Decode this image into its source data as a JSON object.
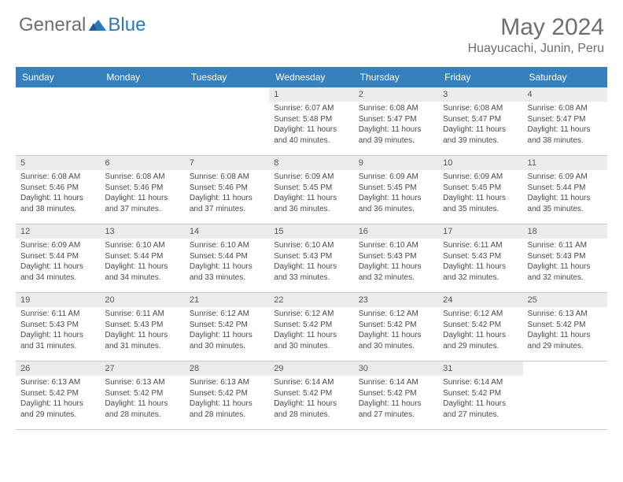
{
  "brand": {
    "part1": "General",
    "part2": "Blue"
  },
  "title": "May 2024",
  "location": "Huayucachi, Junin, Peru",
  "colors": {
    "header_bg": "#3680bd",
    "daynum_bg": "#ececec",
    "border": "#c9c9c9",
    "text": "#4a4a4a"
  },
  "day_headers": [
    "Sunday",
    "Monday",
    "Tuesday",
    "Wednesday",
    "Thursday",
    "Friday",
    "Saturday"
  ],
  "weeks": [
    [
      {
        "num": "",
        "sunrise": "",
        "sunset": "",
        "daylight": ""
      },
      {
        "num": "",
        "sunrise": "",
        "sunset": "",
        "daylight": ""
      },
      {
        "num": "",
        "sunrise": "",
        "sunset": "",
        "daylight": ""
      },
      {
        "num": "1",
        "sunrise": "Sunrise: 6:07 AM",
        "sunset": "Sunset: 5:48 PM",
        "daylight": "Daylight: 11 hours and 40 minutes."
      },
      {
        "num": "2",
        "sunrise": "Sunrise: 6:08 AM",
        "sunset": "Sunset: 5:47 PM",
        "daylight": "Daylight: 11 hours and 39 minutes."
      },
      {
        "num": "3",
        "sunrise": "Sunrise: 6:08 AM",
        "sunset": "Sunset: 5:47 PM",
        "daylight": "Daylight: 11 hours and 39 minutes."
      },
      {
        "num": "4",
        "sunrise": "Sunrise: 6:08 AM",
        "sunset": "Sunset: 5:47 PM",
        "daylight": "Daylight: 11 hours and 38 minutes."
      }
    ],
    [
      {
        "num": "5",
        "sunrise": "Sunrise: 6:08 AM",
        "sunset": "Sunset: 5:46 PM",
        "daylight": "Daylight: 11 hours and 38 minutes."
      },
      {
        "num": "6",
        "sunrise": "Sunrise: 6:08 AM",
        "sunset": "Sunset: 5:46 PM",
        "daylight": "Daylight: 11 hours and 37 minutes."
      },
      {
        "num": "7",
        "sunrise": "Sunrise: 6:08 AM",
        "sunset": "Sunset: 5:46 PM",
        "daylight": "Daylight: 11 hours and 37 minutes."
      },
      {
        "num": "8",
        "sunrise": "Sunrise: 6:09 AM",
        "sunset": "Sunset: 5:45 PM",
        "daylight": "Daylight: 11 hours and 36 minutes."
      },
      {
        "num": "9",
        "sunrise": "Sunrise: 6:09 AM",
        "sunset": "Sunset: 5:45 PM",
        "daylight": "Daylight: 11 hours and 36 minutes."
      },
      {
        "num": "10",
        "sunrise": "Sunrise: 6:09 AM",
        "sunset": "Sunset: 5:45 PM",
        "daylight": "Daylight: 11 hours and 35 minutes."
      },
      {
        "num": "11",
        "sunrise": "Sunrise: 6:09 AM",
        "sunset": "Sunset: 5:44 PM",
        "daylight": "Daylight: 11 hours and 35 minutes."
      }
    ],
    [
      {
        "num": "12",
        "sunrise": "Sunrise: 6:09 AM",
        "sunset": "Sunset: 5:44 PM",
        "daylight": "Daylight: 11 hours and 34 minutes."
      },
      {
        "num": "13",
        "sunrise": "Sunrise: 6:10 AM",
        "sunset": "Sunset: 5:44 PM",
        "daylight": "Daylight: 11 hours and 34 minutes."
      },
      {
        "num": "14",
        "sunrise": "Sunrise: 6:10 AM",
        "sunset": "Sunset: 5:44 PM",
        "daylight": "Daylight: 11 hours and 33 minutes."
      },
      {
        "num": "15",
        "sunrise": "Sunrise: 6:10 AM",
        "sunset": "Sunset: 5:43 PM",
        "daylight": "Daylight: 11 hours and 33 minutes."
      },
      {
        "num": "16",
        "sunrise": "Sunrise: 6:10 AM",
        "sunset": "Sunset: 5:43 PM",
        "daylight": "Daylight: 11 hours and 32 minutes."
      },
      {
        "num": "17",
        "sunrise": "Sunrise: 6:11 AM",
        "sunset": "Sunset: 5:43 PM",
        "daylight": "Daylight: 11 hours and 32 minutes."
      },
      {
        "num": "18",
        "sunrise": "Sunrise: 6:11 AM",
        "sunset": "Sunset: 5:43 PM",
        "daylight": "Daylight: 11 hours and 32 minutes."
      }
    ],
    [
      {
        "num": "19",
        "sunrise": "Sunrise: 6:11 AM",
        "sunset": "Sunset: 5:43 PM",
        "daylight": "Daylight: 11 hours and 31 minutes."
      },
      {
        "num": "20",
        "sunrise": "Sunrise: 6:11 AM",
        "sunset": "Sunset: 5:43 PM",
        "daylight": "Daylight: 11 hours and 31 minutes."
      },
      {
        "num": "21",
        "sunrise": "Sunrise: 6:12 AM",
        "sunset": "Sunset: 5:42 PM",
        "daylight": "Daylight: 11 hours and 30 minutes."
      },
      {
        "num": "22",
        "sunrise": "Sunrise: 6:12 AM",
        "sunset": "Sunset: 5:42 PM",
        "daylight": "Daylight: 11 hours and 30 minutes."
      },
      {
        "num": "23",
        "sunrise": "Sunrise: 6:12 AM",
        "sunset": "Sunset: 5:42 PM",
        "daylight": "Daylight: 11 hours and 30 minutes."
      },
      {
        "num": "24",
        "sunrise": "Sunrise: 6:12 AM",
        "sunset": "Sunset: 5:42 PM",
        "daylight": "Daylight: 11 hours and 29 minutes."
      },
      {
        "num": "25",
        "sunrise": "Sunrise: 6:13 AM",
        "sunset": "Sunset: 5:42 PM",
        "daylight": "Daylight: 11 hours and 29 minutes."
      }
    ],
    [
      {
        "num": "26",
        "sunrise": "Sunrise: 6:13 AM",
        "sunset": "Sunset: 5:42 PM",
        "daylight": "Daylight: 11 hours and 29 minutes."
      },
      {
        "num": "27",
        "sunrise": "Sunrise: 6:13 AM",
        "sunset": "Sunset: 5:42 PM",
        "daylight": "Daylight: 11 hours and 28 minutes."
      },
      {
        "num": "28",
        "sunrise": "Sunrise: 6:13 AM",
        "sunset": "Sunset: 5:42 PM",
        "daylight": "Daylight: 11 hours and 28 minutes."
      },
      {
        "num": "29",
        "sunrise": "Sunrise: 6:14 AM",
        "sunset": "Sunset: 5:42 PM",
        "daylight": "Daylight: 11 hours and 28 minutes."
      },
      {
        "num": "30",
        "sunrise": "Sunrise: 6:14 AM",
        "sunset": "Sunset: 5:42 PM",
        "daylight": "Daylight: 11 hours and 27 minutes."
      },
      {
        "num": "31",
        "sunrise": "Sunrise: 6:14 AM",
        "sunset": "Sunset: 5:42 PM",
        "daylight": "Daylight: 11 hours and 27 minutes."
      },
      {
        "num": "",
        "sunrise": "",
        "sunset": "",
        "daylight": ""
      }
    ]
  ]
}
